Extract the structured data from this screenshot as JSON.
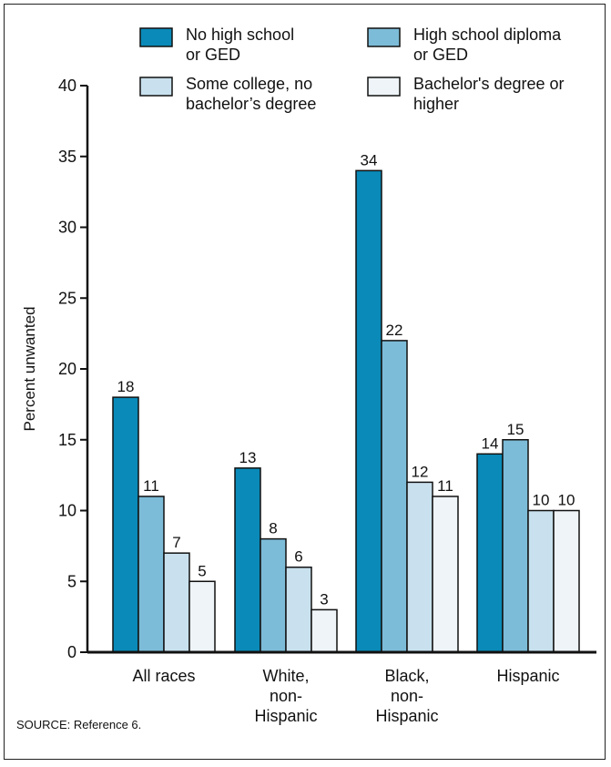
{
  "chart_data": {
    "type": "bar",
    "ylabel": "Percent unwanted",
    "ylim": [
      0,
      40
    ],
    "yticks": [
      0,
      5,
      10,
      15,
      20,
      25,
      30,
      35,
      40
    ],
    "grid": false,
    "legend_position": "top",
    "categories": [
      [
        "All races"
      ],
      [
        "White,",
        "non-",
        "Hispanic"
      ],
      [
        "Black,",
        "non-",
        "Hispanic"
      ],
      [
        "Hispanic"
      ]
    ],
    "series": [
      {
        "name": [
          "No high school",
          "or GED"
        ],
        "color": "#0a8ab8",
        "values": [
          18,
          13,
          34,
          14
        ]
      },
      {
        "name": [
          "High school diploma",
          "or GED"
        ],
        "color": "#7dbcd8",
        "values": [
          11,
          8,
          22,
          15
        ]
      },
      {
        "name": [
          "Some college, no",
          "bachelor’s degree"
        ],
        "color": "#c9e1ee",
        "values": [
          7,
          6,
          12,
          10
        ]
      },
      {
        "name": [
          "Bachelor's degree or",
          "higher"
        ],
        "color": "#eef4f8",
        "values": [
          5,
          3,
          11,
          10
        ]
      }
    ]
  },
  "source": "SOURCE: Reference 6."
}
